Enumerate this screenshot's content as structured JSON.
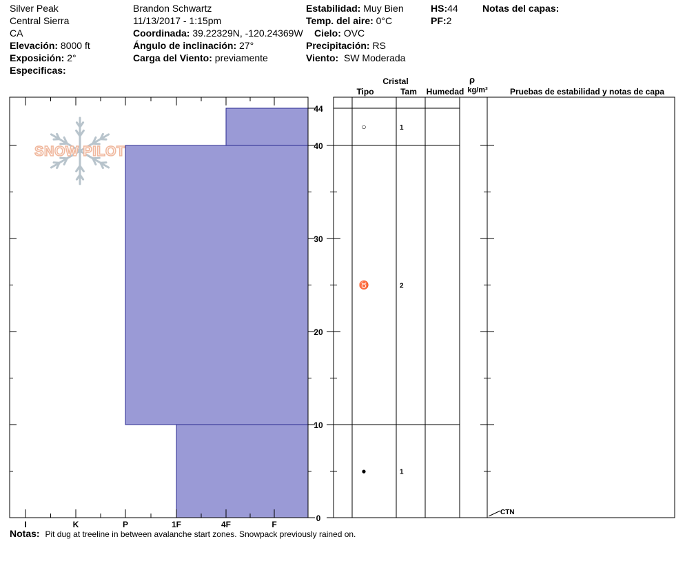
{
  "site": {
    "name": "Silver Peak",
    "range": "Central Sierra",
    "state": "CA",
    "elevation_label": "Elevación:",
    "elevation": "8000 ft",
    "aspect_label": "Exposición:",
    "aspect": "2°",
    "specifics_label": "Especificas:"
  },
  "observer": {
    "name": "Brandon Schwartz",
    "datetime": "11/13/2017 - 1:15pm",
    "coord_label": "Coordinada:",
    "coord": "39.22329N, -120.24369W",
    "slope_label": "Ángulo de inclinación:",
    "slope": "27°",
    "wind_load_label": "Carga del Viento:",
    "wind_load": "previamente"
  },
  "conditions": {
    "stability_label": "Estabilidad:",
    "stability": "Muy Bien",
    "air_temp_label": "Temp. del aire:",
    "air_temp": "0°C",
    "sky_label": "Cielo:",
    "sky": "OVC",
    "precip_label": "Precipitación:",
    "precip": "RS",
    "wind_label": "Viento:",
    "wind": "SW Moderada"
  },
  "depth": {
    "hs_label": "HS:",
    "hs": "44",
    "pf_label": "PF:",
    "pf": "2"
  },
  "layer_notes_label": "Notas del capas:",
  "logo_text": "SNOW PILOT",
  "notes_label": "Notas:",
  "notes": "Pit dug at treeline in between avalanche start zones. Snowpack previously rained on.",
  "table_headers": {
    "crystal": "Cristal",
    "type": "Tipo",
    "size": "Tam",
    "moisture": "Humedad",
    "rho": "ρ",
    "density_unit": "kg/m³",
    "tests": "Pruebas de estabilidad y notas de capa"
  },
  "colors": {
    "hardness_fill": "#9a9ad6",
    "hardness_stroke": "#2a2a90"
  },
  "chart_data": {
    "type": "bar",
    "xlabel": "",
    "ylabel": "",
    "hardness_scale": [
      "I",
      "K",
      "P",
      "1F",
      "4F",
      "F"
    ],
    "ylim": [
      0,
      44
    ],
    "y_ticks_labeled": [
      0,
      10,
      20,
      30,
      40,
      44
    ],
    "layers": [
      {
        "top": 44,
        "bottom": 40,
        "hardness": "4F",
        "hardness_index": 4,
        "crystal_type": "precipitation-particles",
        "crystal_symbol": "○",
        "grain_size": "1"
      },
      {
        "top": 40,
        "bottom": 10,
        "hardness": "P",
        "hardness_index": 2,
        "crystal_type": "faceted-rounded",
        "crystal_symbol": "♉",
        "grain_size": "2"
      },
      {
        "top": 10,
        "bottom": 0,
        "hardness": "1F",
        "hardness_index": 3,
        "crystal_type": "melt-freeze",
        "crystal_symbol": "●",
        "grain_size": "1"
      }
    ],
    "stability_tests": [
      {
        "depth": 0,
        "label": "CTN"
      }
    ]
  }
}
